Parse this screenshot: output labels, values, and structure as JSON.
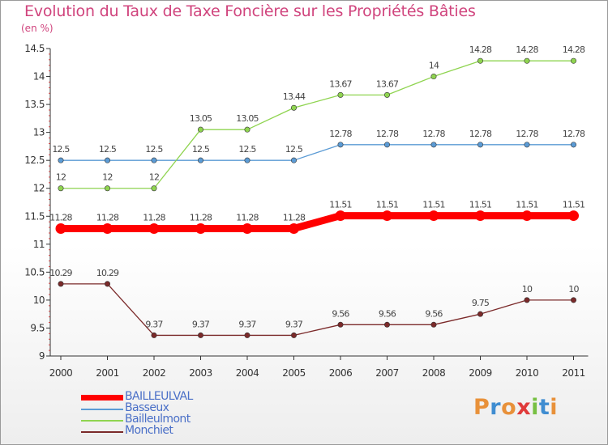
{
  "header": {
    "title": "Evolution du Taux de Taxe Foncière sur les Propriétés Bâties",
    "subtitle": "(en %)"
  },
  "colors": {
    "title": "#d0447d",
    "legend_text": "#4a6fc7"
  },
  "logo": {
    "text": "Proxiti",
    "colors": [
      "#e8913a",
      "#3f8dd1",
      "#e8913a",
      "#e03a3a",
      "#77c043",
      "#3f8dd1",
      "#e8913a"
    ]
  },
  "chart_data": {
    "type": "line",
    "title": "Evolution du Taux de Taxe Foncière sur les Propriétés Bâties",
    "ylabel": "(en %)",
    "xlabel": "",
    "x": [
      "2000",
      "2001",
      "2002",
      "2003",
      "2004",
      "2005",
      "2006",
      "2007",
      "2008",
      "2009",
      "2010",
      "2011"
    ],
    "ylim": [
      9,
      14.5
    ],
    "yticks": [
      "9",
      "9.5",
      "10",
      "10.5",
      "11",
      "11.5",
      "12",
      "12.5",
      "13",
      "13.5",
      "14",
      "14.5"
    ],
    "grid": false,
    "legend_position": "bottom-left",
    "series": [
      {
        "name": "BAILLEULVAL",
        "color": "#ff0000",
        "emphasis": true,
        "values": [
          11.28,
          11.28,
          11.28,
          11.28,
          11.28,
          11.28,
          11.51,
          11.51,
          11.51,
          11.51,
          11.51,
          11.51
        ],
        "labels": [
          "11.28",
          "11.28",
          "11.28",
          "11.28",
          "11.28",
          "11.28",
          "11.51",
          "11.51",
          "11.51",
          "11.51",
          "11.51",
          "11.51"
        ]
      },
      {
        "name": "Basseux",
        "color": "#5b9bd5",
        "values": [
          12.5,
          12.5,
          12.5,
          12.5,
          12.5,
          12.5,
          12.78,
          12.78,
          12.78,
          12.78,
          12.78,
          12.78
        ],
        "labels": [
          "12.5",
          "12.5",
          "12.5",
          "12.5",
          "12.5",
          "12.5",
          "12.78",
          "12.78",
          "12.78",
          "12.78",
          "12.78",
          "12.78"
        ]
      },
      {
        "name": "Bailleulmont",
        "color": "#8fd450",
        "values": [
          12,
          12,
          12,
          13.05,
          13.05,
          13.44,
          13.67,
          13.67,
          14,
          14.28,
          14.28,
          14.28
        ],
        "labels": [
          "12",
          "12",
          "12",
          "13.05",
          "13.05",
          "13.44",
          "13.67",
          "13.67",
          "14",
          "14.28",
          "14.28",
          "14.28"
        ]
      },
      {
        "name": "Monchiet",
        "color": "#7b2a2a",
        "values": [
          10.29,
          10.29,
          9.37,
          9.37,
          9.37,
          9.37,
          9.56,
          9.56,
          9.56,
          9.75,
          10,
          10
        ],
        "labels": [
          "10.29",
          "10.29",
          "9.37",
          "9.37",
          "9.37",
          "9.37",
          "9.56",
          "9.56",
          "9.56",
          "9.75",
          "10",
          "10"
        ]
      }
    ]
  }
}
